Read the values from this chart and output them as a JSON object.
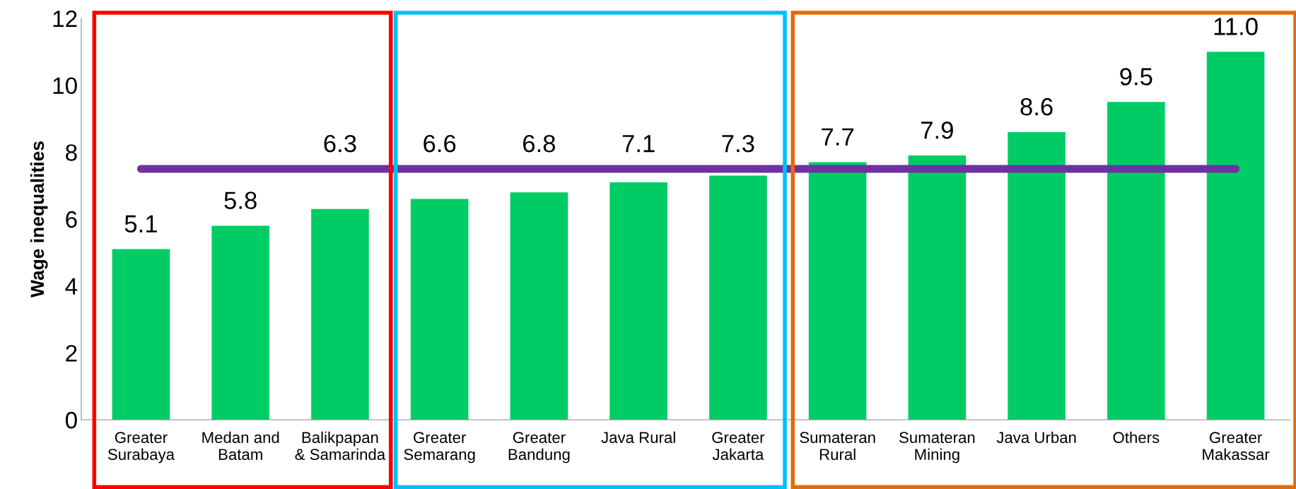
{
  "chart_data": {
    "type": "bar",
    "ylabel": "Wage inequalities",
    "categories": [
      "Greater\nSurabaya",
      "Medan and\nBatam",
      "Balikpapan\n& Samarinda",
      "Greater\nSemarang",
      "Greater\nBandung",
      "Java Rural",
      "Greater\nJakarta",
      "Sumateran\nRural",
      "Sumateran\nMining",
      "Java Urban",
      "Others",
      "Greater\nMakassar"
    ],
    "values": [
      5.1,
      5.8,
      6.3,
      6.6,
      6.8,
      7.1,
      7.3,
      7.7,
      7.9,
      8.6,
      9.5,
      11.0
    ],
    "value_labels": [
      "5.1",
      "5.8",
      "6.3",
      "6.6",
      "6.8",
      "7.1",
      "7.3",
      "7.7",
      "7.9",
      "8.6",
      "9.5",
      "11.0"
    ],
    "color": "#00cc66",
    "ylim": [
      0,
      12
    ],
    "yticks": [
      0,
      2,
      4,
      6,
      8,
      10,
      12
    ],
    "ref_lines": [
      {
        "axis": "y",
        "value": 7.5,
        "color": "#7030a0",
        "line_style": "solid"
      }
    ],
    "grid": false,
    "legend": false
  }
}
